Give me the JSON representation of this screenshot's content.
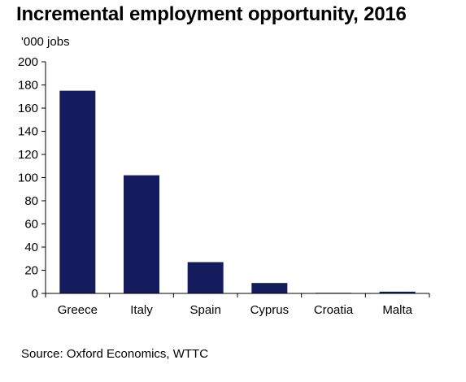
{
  "chart_data": {
    "type": "bar",
    "title": "Incremental employment opportunity, 2016",
    "ylabel": "'000 jobs",
    "xlabel": "",
    "categories": [
      "Greece",
      "Italy",
      "Spain",
      "Cyprus",
      "Croatia",
      "Malta"
    ],
    "values": [
      175,
      102,
      27,
      9,
      0.5,
      1.5
    ],
    "ylim": [
      0,
      200
    ],
    "yticks": [
      0,
      20,
      40,
      60,
      80,
      100,
      120,
      140,
      160,
      180,
      200
    ],
    "grid": false,
    "bar_color": "#141c5e",
    "source": "Source: Oxford Economics, WTTC"
  }
}
